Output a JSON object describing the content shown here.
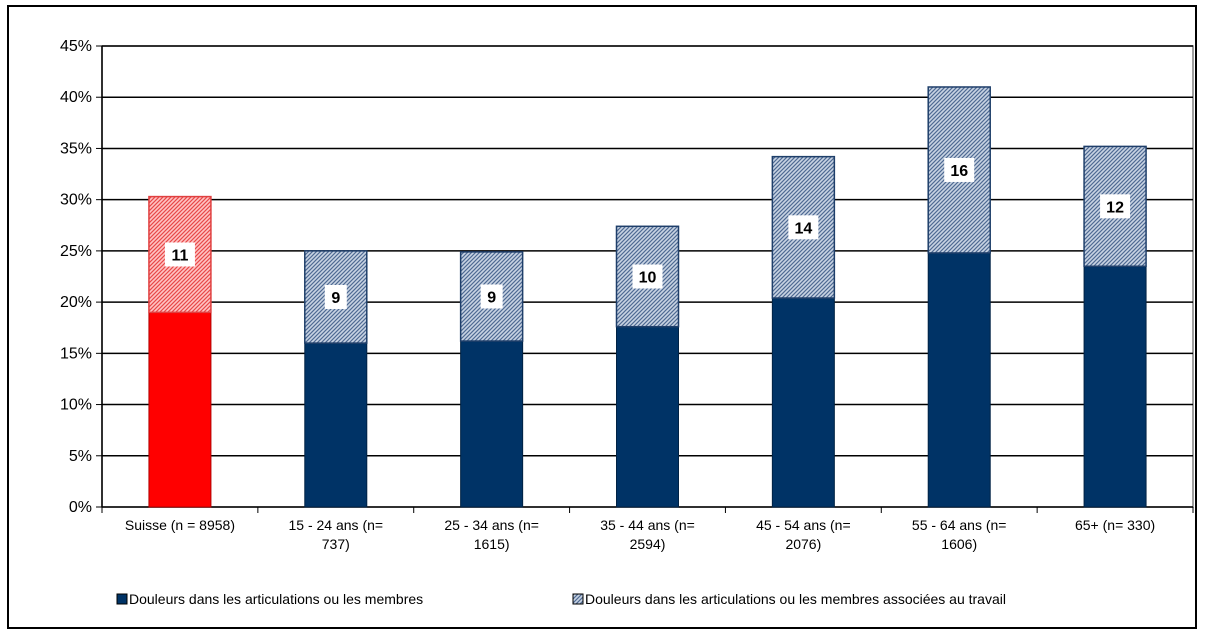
{
  "chart_data": {
    "type": "bar",
    "stacked": true,
    "categories": [
      [
        "Suisse (n = 8958)"
      ],
      [
        "15 - 24 ans (n=",
        "737)"
      ],
      [
        "25 - 34 ans (n=",
        "1615)"
      ],
      [
        "35 - 44 ans (n=",
        "2594)"
      ],
      [
        "45 - 54 ans (n=",
        "2076)"
      ],
      [
        "55 - 64 ans (n=",
        "1606)"
      ],
      [
        "65+ (n= 330)"
      ]
    ],
    "series": [
      {
        "name": "Douleurs dans les articulations ou les membres",
        "values": [
          19,
          16,
          16.2,
          17.6,
          20.4,
          24.8,
          23.5
        ],
        "color": "#003366",
        "highlight_color": "#ff0000"
      },
      {
        "name": "Douleurs dans les articulations ou les membres associées au travail",
        "values": [
          11.3,
          9,
          8.7,
          9.8,
          13.8,
          16.2,
          11.7
        ],
        "labels": [
          "11",
          "9",
          "9",
          "10",
          "14",
          "16",
          "12"
        ],
        "color": "#8fa6c6",
        "highlight_color": "#ff8080",
        "pattern": "hatched"
      }
    ],
    "highlight_category_index": 0,
    "yticks": [
      "0%",
      "5%",
      "10%",
      "15%",
      "20%",
      "25%",
      "30%",
      "35%",
      "40%",
      "45%"
    ],
    "ylim": [
      0,
      45
    ],
    "grid": true,
    "legend_position": "bottom"
  }
}
